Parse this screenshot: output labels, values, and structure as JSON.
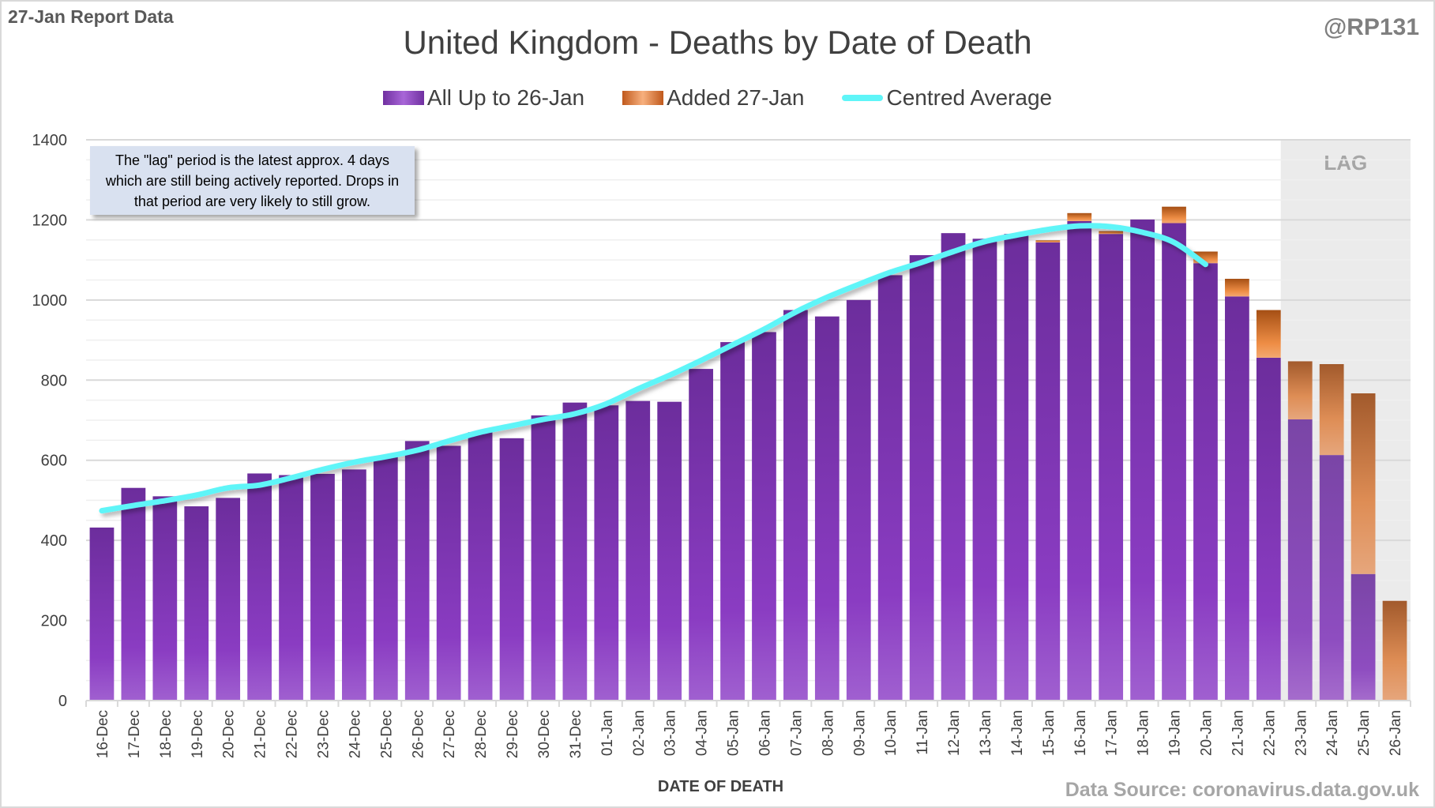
{
  "header": {
    "report_label": "27-Jan Report Data",
    "handle": "@RP131",
    "source": "Data Source: coronavirus.data.gov.uk"
  },
  "note": "The \"lag\" period is the latest approx. 4 days which are still being actively reported.  Drops in that period are very likely to still grow.",
  "colors": {
    "all": "#7b35b5",
    "added": "#e07b35",
    "average": "#5ff5f8",
    "lag_shade": "#ebebeb"
  },
  "chart_data": {
    "type": "bar",
    "stacked": true,
    "title": "United Kingdom - Deaths by Date of Death",
    "xlabel": "DATE OF DEATH",
    "ylabel": "",
    "ylim": [
      0,
      1400
    ],
    "yticks": [
      0,
      200,
      400,
      600,
      800,
      1000,
      1200,
      1400
    ],
    "grid": true,
    "legend": "top",
    "lag_label": "LAG",
    "lag_categories": [
      "23-Jan",
      "24-Jan",
      "25-Jan",
      "26-Jan"
    ],
    "categories": [
      "16-Dec",
      "17-Dec",
      "18-Dec",
      "19-Dec",
      "20-Dec",
      "21-Dec",
      "22-Dec",
      "23-Dec",
      "24-Dec",
      "25-Dec",
      "26-Dec",
      "27-Dec",
      "28-Dec",
      "29-Dec",
      "30-Dec",
      "31-Dec",
      "01-Jan",
      "02-Jan",
      "03-Jan",
      "04-Jan",
      "05-Jan",
      "06-Jan",
      "07-Jan",
      "08-Jan",
      "09-Jan",
      "10-Jan",
      "11-Jan",
      "12-Jan",
      "13-Jan",
      "14-Jan",
      "15-Jan",
      "16-Jan",
      "17-Jan",
      "18-Jan",
      "19-Jan",
      "20-Jan",
      "21-Jan",
      "22-Jan",
      "23-Jan",
      "24-Jan",
      "25-Jan",
      "26-Jan"
    ],
    "series": [
      {
        "name": "All Up to 26-Jan",
        "type": "bar",
        "values": [
          432,
          531,
          510,
          485,
          506,
          567,
          563,
          566,
          577,
          609,
          648,
          636,
          670,
          655,
          712,
          744,
          737,
          748,
          746,
          828,
          895,
          920,
          975,
          959,
          1000,
          1062,
          1112,
          1167,
          1153,
          1165,
          1144,
          1197,
          1165,
          1201,
          1192,
          1092,
          1009,
          856,
          702,
          613,
          316,
          0
        ]
      },
      {
        "name": "Added 27-Jan",
        "type": "bar",
        "values": [
          0,
          0,
          0,
          0,
          0,
          0,
          0,
          0,
          0,
          0,
          0,
          0,
          0,
          0,
          0,
          0,
          0,
          0,
          0,
          0,
          0,
          0,
          0,
          0,
          0,
          0,
          0,
          0,
          0,
          0,
          5,
          20,
          7,
          0,
          41,
          29,
          44,
          119,
          145,
          227,
          451,
          249
        ]
      },
      {
        "name": "Centred Average",
        "type": "line",
        "values": [
          474,
          487,
          499,
          513,
          531,
          538,
          556,
          577,
          595,
          609,
          625,
          648,
          670,
          686,
          702,
          716,
          741,
          778,
          812,
          849,
          888,
          927,
          970,
          1007,
          1039,
          1069,
          1094,
          1121,
          1146,
          1162,
          1176,
          1185,
          1183,
          1169,
          1144,
          1089,
          null,
          null,
          null,
          null,
          null,
          null
        ]
      }
    ]
  }
}
